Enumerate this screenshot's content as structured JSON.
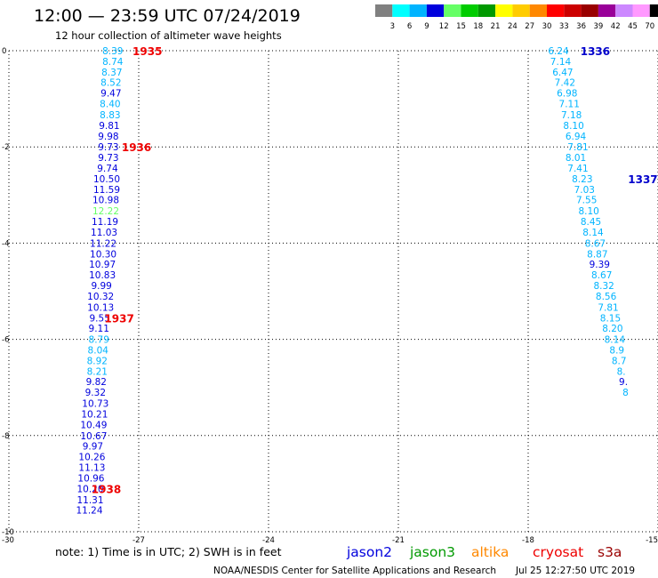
{
  "header": {
    "title": "12:00 — 23:59 UTC 07/24/2019",
    "subtitle": "12 hour collection of altimeter wave heights"
  },
  "colorbar": {
    "labels": [
      "3",
      "6",
      "9",
      "12",
      "15",
      "18",
      "21",
      "24",
      "27",
      "30",
      "33",
      "36",
      "39",
      "42",
      "45",
      "70",
      "(ft)"
    ],
    "colors": [
      "#808080",
      "#00ffff",
      "#00b4ff",
      "#0000dd",
      "#66ff66",
      "#00cc00",
      "#009900",
      "#ffff00",
      "#ffcc00",
      "#ff8800",
      "#ff0000",
      "#cc0000",
      "#990000",
      "#990099",
      "#cc88ff",
      "#ff99ff",
      "#000000"
    ]
  },
  "footer": {
    "note": "note:  1) Time is in UTC;  2) SWH is in feet",
    "credit": "NOAA/NESDIS Center for Satellite Applications and Research",
    "timestamp": "Jul 25 12:27:50 UTC 2019",
    "satellites": [
      {
        "name": "jason2",
        "color": "#0000dd"
      },
      {
        "name": "jason3",
        "color": "#009900"
      },
      {
        "name": "altika",
        "color": "#ff8800"
      },
      {
        "name": "cryosat",
        "color": "#ee0000"
      },
      {
        "name": "s3a",
        "color": "#990000"
      }
    ]
  },
  "chart_data": {
    "type": "scatter",
    "xlim": [
      -30,
      -15
    ],
    "ylim": [
      -10,
      0
    ],
    "xticks": [
      -30,
      -27,
      -24,
      -21,
      -18,
      -15
    ],
    "yticks": [
      0,
      -2,
      -4,
      -6,
      -8,
      -10
    ],
    "grid": true,
    "tracks": [
      {
        "satellite": "jason2",
        "points": [
          {
            "x": -27.6,
            "y": 0.0,
            "v": "8.39"
          },
          {
            "x": -27.6,
            "y": -0.22,
            "v": "8.74"
          },
          {
            "x": -27.62,
            "y": -0.44,
            "v": "8.37"
          },
          {
            "x": -27.64,
            "y": -0.66,
            "v": "8.52"
          },
          {
            "x": -27.64,
            "y": -0.88,
            "v": "9.47"
          },
          {
            "x": -27.66,
            "y": -1.1,
            "v": "8.40"
          },
          {
            "x": -27.66,
            "y": -1.33,
            "v": "8.83"
          },
          {
            "x": -27.68,
            "y": -1.55,
            "v": "9.81"
          },
          {
            "x": -27.7,
            "y": -1.77,
            "v": "9.98"
          },
          {
            "x": -27.7,
            "y": -2.0,
            "v": "9.73"
          },
          {
            "x": -27.7,
            "y": -2.22,
            "v": "9.73"
          },
          {
            "x": -27.72,
            "y": -2.44,
            "v": "9.74"
          },
          {
            "x": -27.74,
            "y": -2.66,
            "v": "10.50"
          },
          {
            "x": -27.74,
            "y": -2.88,
            "v": "11.59"
          },
          {
            "x": -27.76,
            "y": -3.1,
            "v": "10.98"
          },
          {
            "x": -27.76,
            "y": -3.33,
            "v": "12.22"
          },
          {
            "x": -27.78,
            "y": -3.55,
            "v": "11.19"
          },
          {
            "x": -27.8,
            "y": -3.77,
            "v": "11.03"
          },
          {
            "x": -27.82,
            "y": -4.0,
            "v": "11.22"
          },
          {
            "x": -27.82,
            "y": -4.22,
            "v": "10.30"
          },
          {
            "x": -27.84,
            "y": -4.44,
            "v": "10.97"
          },
          {
            "x": -27.84,
            "y": -4.66,
            "v": "10.83"
          },
          {
            "x": -27.86,
            "y": -4.88,
            "v": "9.99"
          },
          {
            "x": -27.88,
            "y": -5.1,
            "v": "10.32"
          },
          {
            "x": -27.88,
            "y": -5.33,
            "v": "10.13"
          },
          {
            "x": -27.9,
            "y": -5.55,
            "v": "9.55"
          },
          {
            "x": -27.92,
            "y": -5.77,
            "v": "9.11"
          },
          {
            "x": -27.92,
            "y": -6.0,
            "v": "8.79"
          },
          {
            "x": -27.94,
            "y": -6.22,
            "v": "8.04"
          },
          {
            "x": -27.96,
            "y": -6.44,
            "v": "8.92"
          },
          {
            "x": -27.96,
            "y": -6.66,
            "v": "8.21"
          },
          {
            "x": -27.98,
            "y": -6.88,
            "v": "9.82"
          },
          {
            "x": -28.0,
            "y": -7.1,
            "v": "9.32"
          },
          {
            "x": -28.0,
            "y": -7.33,
            "v": "10.73"
          },
          {
            "x": -28.02,
            "y": -7.55,
            "v": "10.21"
          },
          {
            "x": -28.04,
            "y": -7.77,
            "v": "10.49"
          },
          {
            "x": -28.04,
            "y": -8.0,
            "v": "10.67"
          },
          {
            "x": -28.06,
            "y": -8.22,
            "v": "9.97"
          },
          {
            "x": -28.08,
            "y": -8.44,
            "v": "10.26"
          },
          {
            "x": -28.08,
            "y": -8.66,
            "v": "11.13"
          },
          {
            "x": -28.1,
            "y": -8.88,
            "v": "10.96"
          },
          {
            "x": -28.12,
            "y": -9.1,
            "v": "10.20"
          },
          {
            "x": -28.12,
            "y": -9.33,
            "v": "11.31"
          },
          {
            "x": -28.14,
            "y": -9.55,
            "v": "11.24"
          }
        ],
        "pass_labels": [
          {
            "text": "1935",
            "x": -26.8,
            "y": 0.0
          },
          {
            "text": "1936",
            "x": -27.05,
            "y": -2.0
          },
          {
            "text": "1937",
            "x": -27.45,
            "y": -5.55
          },
          {
            "text": "1938",
            "x": -27.75,
            "y": -9.1
          }
        ]
      },
      {
        "satellite": "jason2",
        "points": [
          {
            "x": -17.3,
            "y": 0.0,
            "v": "6.24"
          },
          {
            "x": -17.25,
            "y": -0.22,
            "v": "7.14"
          },
          {
            "x": -17.2,
            "y": -0.44,
            "v": "6.47"
          },
          {
            "x": -17.15,
            "y": -0.66,
            "v": "7.42"
          },
          {
            "x": -17.1,
            "y": -0.88,
            "v": "6.98"
          },
          {
            "x": -17.05,
            "y": -1.1,
            "v": "7.11"
          },
          {
            "x": -17.0,
            "y": -1.33,
            "v": "7.18"
          },
          {
            "x": -16.95,
            "y": -1.55,
            "v": "8.10"
          },
          {
            "x": -16.9,
            "y": -1.77,
            "v": "6.94"
          },
          {
            "x": -16.85,
            "y": -2.0,
            "v": "7.81"
          },
          {
            "x": -16.9,
            "y": -2.22,
            "v": "8.01"
          },
          {
            "x": -16.85,
            "y": -2.44,
            "v": "7.41"
          },
          {
            "x": -16.75,
            "y": -2.66,
            "v": "8.23"
          },
          {
            "x": -16.7,
            "y": -2.88,
            "v": "7.03"
          },
          {
            "x": -16.65,
            "y": -3.1,
            "v": "7.55"
          },
          {
            "x": -16.6,
            "y": -3.33,
            "v": "8.10"
          },
          {
            "x": -16.55,
            "y": -3.55,
            "v": "8.45"
          },
          {
            "x": -16.5,
            "y": -3.77,
            "v": "8.14"
          },
          {
            "x": -16.45,
            "y": -4.0,
            "v": "8.67"
          },
          {
            "x": -16.4,
            "y": -4.22,
            "v": "8.87"
          },
          {
            "x": -16.35,
            "y": -4.44,
            "v": "9.39"
          },
          {
            "x": -16.3,
            "y": -4.66,
            "v": "8.67"
          },
          {
            "x": -16.25,
            "y": -4.88,
            "v": "8.32"
          },
          {
            "x": -16.2,
            "y": -5.1,
            "v": "8.56"
          },
          {
            "x": -16.15,
            "y": -5.33,
            "v": "7.81"
          },
          {
            "x": -16.1,
            "y": -5.55,
            "v": "8.15"
          },
          {
            "x": -16.05,
            "y": -5.77,
            "v": "8.20"
          },
          {
            "x": -16.0,
            "y": -6.0,
            "v": "8.14"
          },
          {
            "x": -15.95,
            "y": -6.22,
            "v": "8.9"
          },
          {
            "x": -15.9,
            "y": -6.44,
            "v": "8.7"
          },
          {
            "x": -15.85,
            "y": -6.66,
            "v": "8."
          },
          {
            "x": -15.8,
            "y": -6.88,
            "v": "9."
          },
          {
            "x": -15.75,
            "y": -7.1,
            "v": "8"
          }
        ],
        "pass_labels": [
          {
            "text": "1336",
            "x": -16.45,
            "y": 0.0
          },
          {
            "text": "1337",
            "x": -15.35,
            "y": -2.66
          }
        ]
      }
    ]
  }
}
